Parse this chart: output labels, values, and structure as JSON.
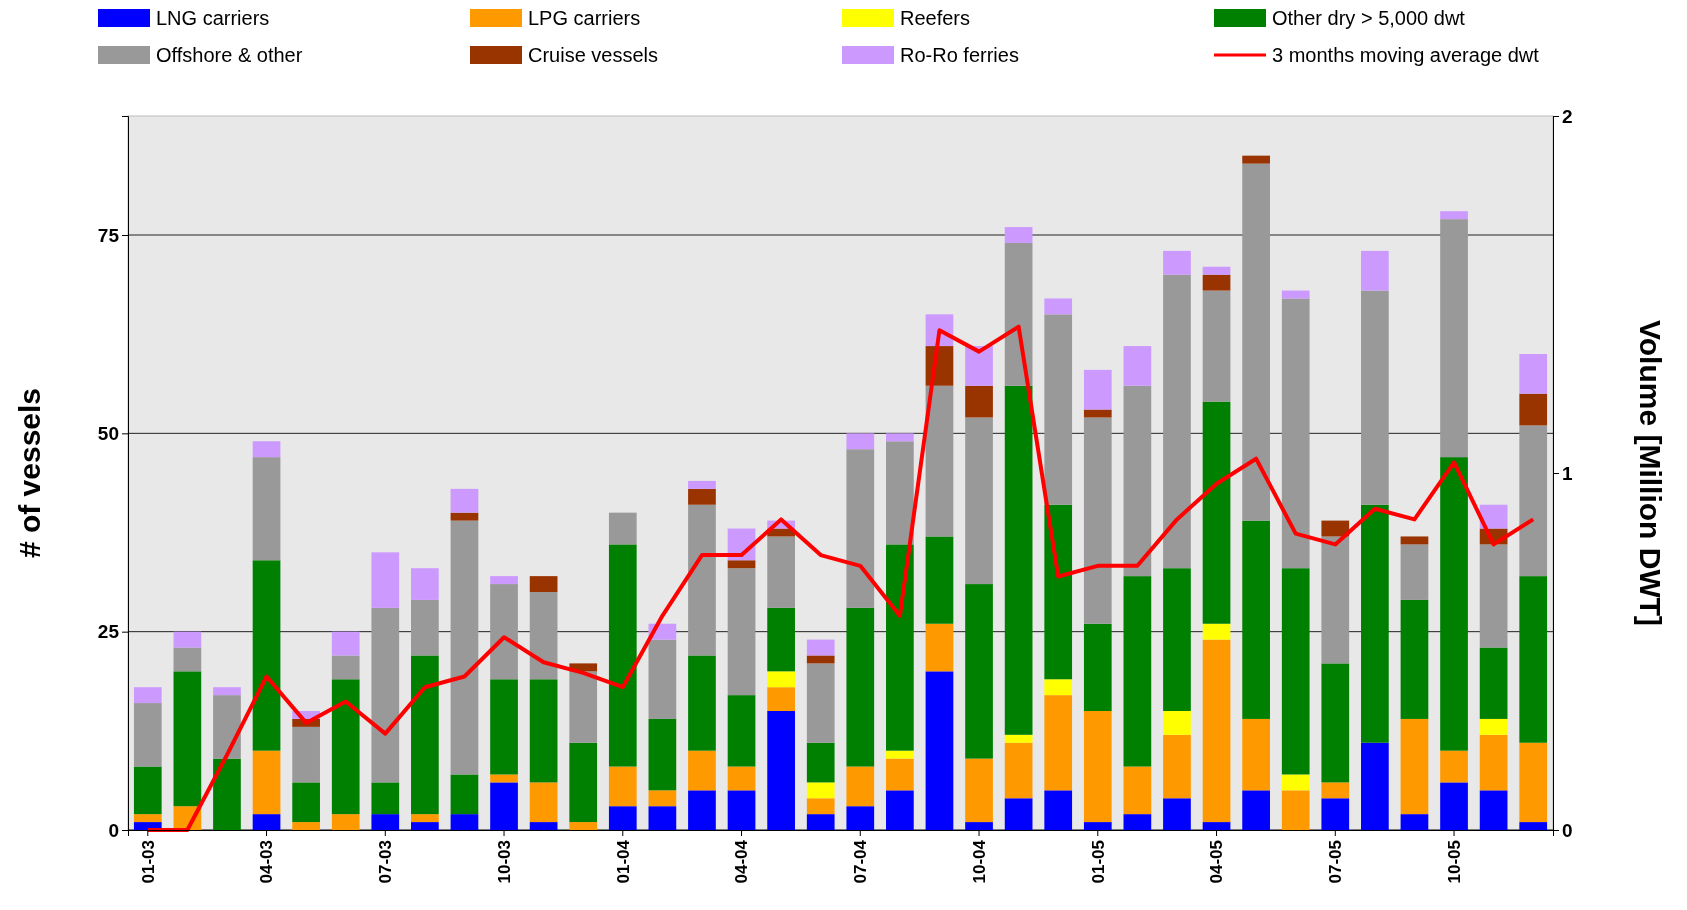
{
  "chart_data": {
    "type": "bar",
    "stacked": true,
    "xlabel": null,
    "ylabel": "# of vessels",
    "y2label": "Volume [Million DWT]",
    "categories": [
      "01-03",
      null,
      null,
      "04-03",
      null,
      null,
      "07-03",
      null,
      null,
      "10-03",
      null,
      null,
      "01-04",
      null,
      null,
      "04-04",
      null,
      null,
      "07-04",
      null,
      null,
      "10-04",
      null,
      null,
      "01-05",
      null,
      null,
      "04-05",
      null,
      null,
      "07-05",
      null,
      null,
      "10-05",
      null,
      null
    ],
    "ylim": [
      0,
      90
    ],
    "yticks": [
      0,
      25,
      50,
      75
    ],
    "y2lim": [
      0,
      2
    ],
    "y2ticks": [
      0,
      1,
      2
    ],
    "grid": "y",
    "legend": "top",
    "marker": "none",
    "line_style": "solid",
    "series": [
      {
        "name": "LNG carriers",
        "color": "#0000ff",
        "values": [
          1,
          0,
          0,
          2,
          0,
          0,
          2,
          1,
          2,
          6,
          1,
          0,
          3,
          3,
          5,
          5,
          15,
          2,
          3,
          5,
          20,
          1,
          4,
          5,
          1,
          2,
          4,
          1,
          5,
          0,
          4,
          11,
          2,
          6,
          5,
          1
        ]
      },
      {
        "name": "LPG carriers",
        "color": "#ff9900",
        "values": [
          1,
          3,
          0,
          8,
          1,
          2,
          0,
          1,
          0,
          1,
          5,
          1,
          5,
          2,
          5,
          3,
          3,
          2,
          5,
          4,
          6,
          8,
          7,
          12,
          14,
          6,
          8,
          23,
          9,
          5,
          2,
          0,
          12,
          4,
          7,
          10
        ]
      },
      {
        "name": "Reefers",
        "color": "#ffff00",
        "values": [
          0,
          0,
          0,
          0,
          0,
          0,
          0,
          0,
          0,
          0,
          0,
          0,
          0,
          0,
          0,
          0,
          2,
          2,
          0,
          1,
          0,
          0,
          1,
          2,
          0,
          0,
          3,
          2,
          0,
          2,
          0,
          0,
          0,
          0,
          2,
          0
        ]
      },
      {
        "name": "Other dry > 5,000 dwt",
        "color": "#008000",
        "values": [
          6,
          17,
          9,
          24,
          5,
          17,
          4,
          20,
          5,
          12,
          13,
          10,
          28,
          9,
          12,
          9,
          8,
          5,
          20,
          26,
          11,
          22,
          44,
          22,
          11,
          24,
          18,
          28,
          25,
          26,
          15,
          30,
          15,
          37,
          9,
          21
        ]
      },
      {
        "name": "Offshore & other",
        "color": "#999999",
        "values": [
          8,
          3,
          8,
          13,
          7,
          3,
          22,
          7,
          32,
          12,
          11,
          9,
          4,
          10,
          19,
          16,
          9,
          10,
          20,
          13,
          19,
          21,
          18,
          24,
          26,
          24,
          37,
          14,
          45,
          34,
          16,
          27,
          7,
          30,
          13,
          19
        ]
      },
      {
        "name": "Cruise vessels",
        "color": "#993300",
        "values": [
          0,
          0,
          0,
          0,
          1,
          0,
          0,
          0,
          1,
          0,
          2,
          1,
          0,
          0,
          2,
          1,
          1,
          1,
          0,
          0,
          5,
          4,
          0,
          0,
          1,
          0,
          0,
          2,
          1,
          0,
          2,
          0,
          1,
          0,
          2,
          4
        ]
      },
      {
        "name": "Ro-Ro ferries",
        "color": "#cc99ff",
        "values": [
          2,
          2,
          1,
          2,
          1,
          3,
          7,
          4,
          3,
          1,
          0,
          0,
          0,
          2,
          1,
          4,
          1,
          2,
          2,
          1,
          4,
          5,
          2,
          2,
          5,
          5,
          3,
          1,
          0,
          1,
          0,
          5,
          0,
          1,
          3,
          5
        ]
      },
      {
        "name": "3 months moving average dwt",
        "type": "line",
        "axis": "y2",
        "color": "#ff0000",
        "values": [
          0,
          0,
          0.21,
          0.43,
          0.3,
          0.36,
          0.27,
          0.4,
          0.43,
          0.54,
          0.47,
          0.44,
          0.4,
          0.6,
          0.77,
          0.77,
          0.87,
          0.77,
          0.74,
          0.6,
          1.4,
          1.34,
          1.41,
          0.71,
          0.74,
          0.74,
          0.87,
          0.97,
          1.04,
          0.83,
          0.8,
          0.9,
          0.87,
          1.03,
          0.8,
          0.87
        ]
      }
    ]
  }
}
